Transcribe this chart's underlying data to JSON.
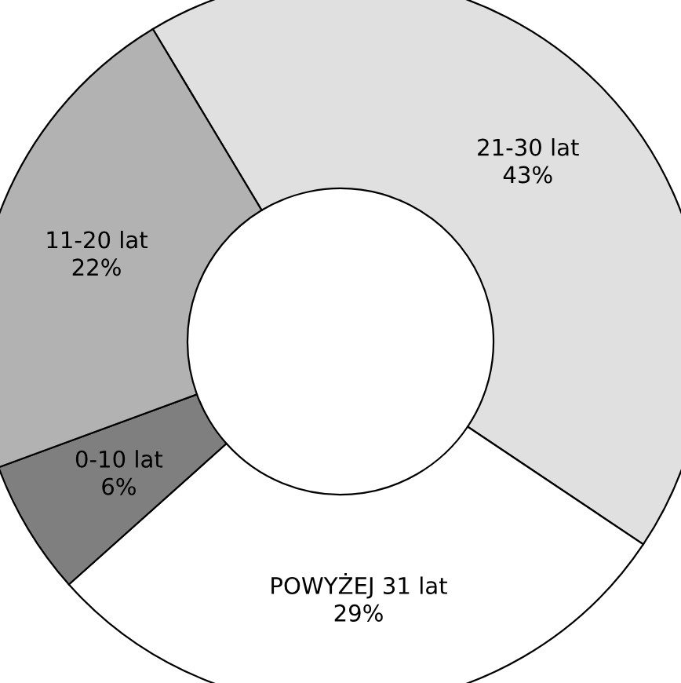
{
  "chart_data": {
    "type": "donut",
    "categories": [
      "21-30 lat",
      "POWYŻEJ 31 lat",
      "0-10 lat",
      "11-20 lat"
    ],
    "values": [
      43,
      29,
      6,
      22
    ],
    "value_labels": [
      "43%",
      "29%",
      "6%",
      "22%"
    ],
    "colors": [
      "#e0e0e0",
      "#ffffff",
      "#7f7f7f",
      "#b2b2b2"
    ],
    "legend": false
  }
}
